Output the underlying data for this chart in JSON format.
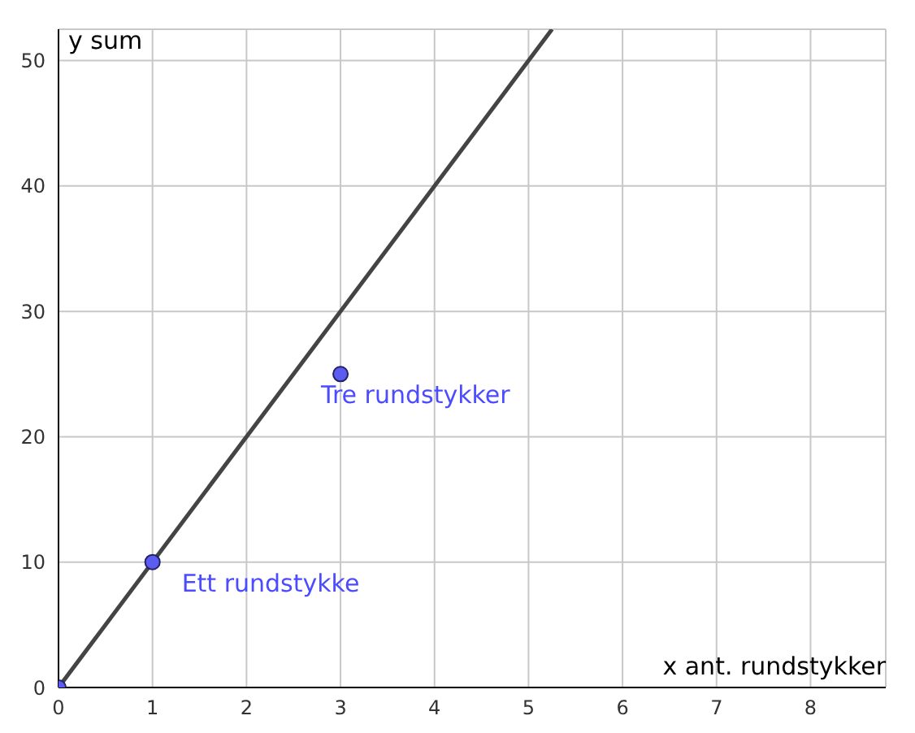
{
  "chart_data": {
    "type": "scatter",
    "xlabel": "x ant. rundstykker",
    "ylabel": "y sum",
    "series": [
      {
        "type": "line",
        "color": "#444444",
        "x": [
          0,
          5.25
        ],
        "values": [
          0,
          52.5
        ],
        "marker": "none"
      },
      {
        "color": "#5c5cf0",
        "x": [
          0,
          1,
          3
        ],
        "values": [
          0,
          10,
          25
        ],
        "marker": "circle"
      }
    ],
    "annotations": [
      {
        "text": "Ett rundstykke",
        "x": 1,
        "y": 10
      },
      {
        "text": "Tre rundstykker",
        "x": 3,
        "y": 25
      }
    ],
    "xlim": [
      0,
      8.8
    ],
    "ylim": [
      0,
      52.5
    ],
    "xticks": [
      0,
      1,
      2,
      3,
      4,
      5,
      6,
      7,
      8
    ],
    "yticks": [
      0,
      10,
      20,
      30,
      40,
      50
    ],
    "grid": true,
    "line_style": "solid"
  }
}
